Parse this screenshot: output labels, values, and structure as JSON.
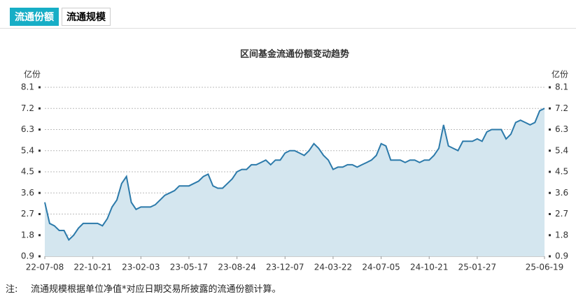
{
  "tabs": [
    "流通份额",
    "流通规模"
  ],
  "chart_data": {
    "type": "area",
    "title": "区间基金流通份额变动趋势",
    "y_unit": "亿份",
    "categories": [
      "22-07-08",
      null,
      null,
      null,
      null,
      null,
      null,
      null,
      null,
      null,
      "22-10-21",
      null,
      null,
      null,
      null,
      null,
      null,
      null,
      null,
      null,
      "23-02-03",
      null,
      null,
      null,
      null,
      null,
      null,
      null,
      null,
      null,
      "23-05-17",
      null,
      null,
      null,
      null,
      null,
      null,
      null,
      null,
      null,
      "23-08-24",
      null,
      null,
      null,
      null,
      null,
      null,
      null,
      null,
      null,
      "23-12-07",
      null,
      null,
      null,
      null,
      null,
      null,
      null,
      null,
      null,
      "24-03-22",
      null,
      null,
      null,
      null,
      null,
      null,
      null,
      null,
      null,
      "24-07-05",
      null,
      null,
      null,
      null,
      null,
      null,
      null,
      null,
      null,
      "24-10-21",
      null,
      null,
      null,
      null,
      null,
      null,
      null,
      null,
      null,
      "25-01-27",
      null,
      null,
      null,
      null,
      null,
      null,
      null,
      null,
      null,
      null,
      null,
      null,
      null,
      "25-06-19"
    ],
    "values": [
      3.2,
      2.3,
      2.2,
      2.0,
      2.0,
      1.6,
      1.8,
      2.1,
      2.3,
      2.3,
      2.3,
      2.3,
      2.2,
      2.5,
      3.0,
      3.3,
      4.0,
      4.3,
      3.2,
      2.9,
      3.0,
      3.0,
      3.0,
      3.1,
      3.3,
      3.5,
      3.6,
      3.7,
      3.9,
      3.9,
      3.9,
      4.0,
      4.1,
      4.3,
      4.4,
      3.9,
      3.8,
      3.8,
      4.0,
      4.2,
      4.5,
      4.6,
      4.6,
      4.8,
      4.8,
      4.9,
      5.0,
      4.8,
      5.0,
      5.0,
      5.3,
      5.4,
      5.4,
      5.3,
      5.2,
      5.4,
      5.7,
      5.5,
      5.2,
      5.0,
      4.6,
      4.7,
      4.7,
      4.8,
      4.8,
      4.7,
      4.8,
      4.9,
      5.0,
      5.2,
      5.7,
      5.6,
      5.0,
      5.0,
      5.0,
      4.9,
      5.0,
      5.0,
      4.9,
      5.0,
      5.0,
      5.2,
      5.5,
      6.5,
      5.6,
      5.5,
      5.4,
      5.8,
      5.8,
      5.8,
      5.9,
      5.8,
      6.2,
      6.3,
      6.3,
      6.3,
      5.9,
      6.1,
      6.6,
      6.7,
      6.6,
      6.5,
      6.6,
      7.1,
      7.2
    ],
    "color": "#2c7aaa",
    "fill": "#d4e6ef",
    "ylim": [
      0.9,
      8.1
    ],
    "yticks": [
      0.9,
      1.8,
      2.7,
      3.6,
      4.5,
      5.4,
      6.3,
      7.2,
      8.1
    ],
    "grid": true
  },
  "note": {
    "label": "注:",
    "text": "流通规模根据单位净值*对应日期交易所披露的流通份额计算。"
  }
}
